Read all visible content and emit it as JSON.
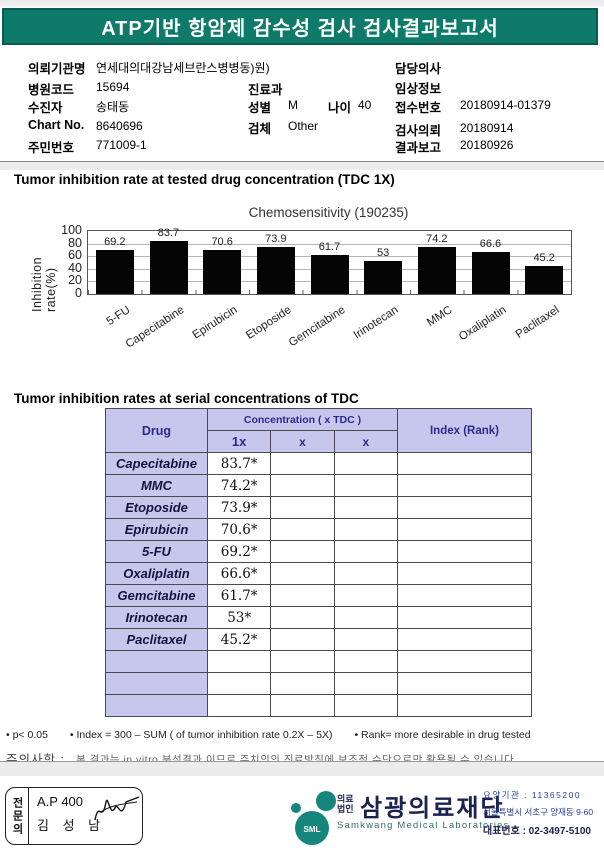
{
  "header": {
    "title": "ATP기반 항암제 감수성 검사 검사결과보고서"
  },
  "patient": {
    "rows_left": [
      {
        "label": "의뢰기관명",
        "value": "연세대의대강남세브란스병병동)원)"
      },
      {
        "label": "병원코드",
        "value": "15694"
      },
      {
        "label": "수진자",
        "value": "송태동"
      },
      {
        "label": "Chart No.",
        "value": "8640696"
      },
      {
        "label": "주민번호",
        "value": "771009-1"
      }
    ],
    "rows_mid": [
      {
        "label": "진료과",
        "value": ""
      },
      {
        "label": "성별",
        "value": "M",
        "label2": "나이",
        "value2": "40"
      },
      {
        "label": "검체",
        "value": "Other"
      }
    ],
    "rows_right": [
      {
        "label": "담당의사",
        "value": ""
      },
      {
        "label": "임상정보",
        "value": ""
      },
      {
        "label": "접수번호",
        "value": "20180914-01379"
      },
      {
        "label": "검사의뢰",
        "value": "20180914"
      },
      {
        "label": "결과보고",
        "value": "20180926"
      }
    ]
  },
  "section1_title": "Tumor inhibition rate at tested drug concentration (TDC 1X)",
  "chart_data": {
    "type": "bar",
    "title": "Chemosensitivity (190235)",
    "ylabel": "Inhibition rate(%)",
    "ylim": [
      0,
      100
    ],
    "yticks": [
      "100",
      "80",
      "60",
      "40",
      "20",
      "0"
    ],
    "categories": [
      "5-FU",
      "Capecitabine",
      "Epirubicin",
      "Etoposide",
      "Gemcitabine",
      "Irinotecan",
      "MMC",
      "Oxaliplatin",
      "Paclitaxel"
    ],
    "values": [
      69.2,
      83.7,
      70.6,
      73.9,
      61.7,
      53,
      74.2,
      66.6,
      45.2
    ],
    "value_labels": [
      "69.2",
      "83.7",
      "70.6",
      "73.9",
      "61.7",
      "53",
      "74.2",
      "66.6",
      "45.2"
    ],
    "bar_color": "#050505",
    "grid": "on",
    "legend": "none"
  },
  "section2_title": "Tumor inhibition rates at serial concentrations of TDC",
  "table": {
    "col_drug": "Drug",
    "col_concentration": "Concentration ( x TDC )",
    "col_sub": [
      "1x",
      "x",
      "x"
    ],
    "col_index": "Index (Rank)",
    "rows": [
      {
        "drug": "Capecitabine",
        "c1": "83.7*"
      },
      {
        "drug": "MMC",
        "c1": "74.2*"
      },
      {
        "drug": "Etoposide",
        "c1": "73.9*"
      },
      {
        "drug": "Epirubicin",
        "c1": "70.6*"
      },
      {
        "drug": "5-FU",
        "c1": "69.2*"
      },
      {
        "drug": "Oxaliplatin",
        "c1": "66.6*"
      },
      {
        "drug": "Gemcitabine",
        "c1": "61.7*"
      },
      {
        "drug": "Irinotecan",
        "c1": "53*"
      },
      {
        "drug": "Paclitaxel",
        "c1": "45.2*"
      }
    ]
  },
  "notes": {
    "items": [
      "• p< 0.05",
      "• Index = 300 – SUM ( of tumor inhibition rate 0.2X  –  5X)",
      "• Rank= more desirable in drug tested"
    ],
    "caution_label": "주의사항 :",
    "caution_text": "본 결과는 in vitro 분석결과 이므로 주치의의 진료방침에 보조적 수단으로만 활용될 수 있습니다"
  },
  "footer": {
    "stamp": {
      "role": "전문의",
      "line1": "A.P 400",
      "line2": "김 성 남"
    },
    "logo": {
      "mark_text": "SML",
      "org_prefix_top": "의료",
      "org_prefix_bottom": "법인",
      "org_name": "삼광의료재단",
      "org_name_en": "Samkwang Medical Laboratories",
      "contact1": "요양기관 : 11365200",
      "contact2": "서울특별시 서초구 양재동 9-60",
      "contact3": "대표번호 : 02-3497-5100"
    }
  },
  "colors": {
    "header_bg": "#0e7b6a",
    "table_header_bg": "#c7c7ee",
    "table_header_text": "#2b2b8a",
    "logo_teal": "#16867c",
    "bar_color": "#050505"
  }
}
